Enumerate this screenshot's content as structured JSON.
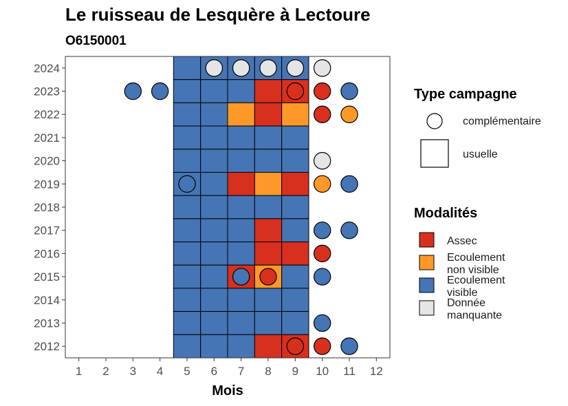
{
  "chart_data": {
    "type": "heatmap",
    "title": "Le ruisseau de Lesquère à Lectoure",
    "subtitle": "O6150001",
    "xlabel": "Mois",
    "ylabel": "",
    "x_ticks": [
      1,
      2,
      3,
      4,
      5,
      6,
      7,
      8,
      9,
      10,
      11,
      12
    ],
    "y_ticks": [
      2012,
      2013,
      2014,
      2015,
      2016,
      2017,
      2018,
      2019,
      2020,
      2021,
      2022,
      2023,
      2024
    ],
    "xlim": [
      0.5,
      12.5
    ],
    "ylim": [
      2011.5,
      2024.5
    ],
    "colors": {
      "Assec": "#d7301f",
      "Ecoulement non visible": "#fe9929",
      "Ecoulement visible": "#4575b4",
      "Donnée manquante": "#e5e5e5"
    },
    "grid": false,
    "legend_placement": "right",
    "legend_type": {
      "title": "Type campagne",
      "items": [
        {
          "shape": "circle",
          "label": "complémentaire"
        },
        {
          "shape": "square",
          "label": "usuelle"
        }
      ]
    },
    "legend_modalites": {
      "title": "Modalités",
      "items": [
        {
          "key": "Assec",
          "label_lines": [
            "Assec"
          ]
        },
        {
          "key": "Ecoulement non visible",
          "label_lines": [
            "Ecoulement",
            "non visible"
          ]
        },
        {
          "key": "Ecoulement visible",
          "label_lines": [
            "Ecoulement",
            "visible"
          ]
        },
        {
          "key": "Donnée manquante",
          "label_lines": [
            "Donnée",
            "manquante"
          ]
        }
      ]
    },
    "usuelle": [
      {
        "year": 2024,
        "values": [
          "Ecoulement visible",
          "Ecoulement visible",
          "Ecoulement visible",
          "Ecoulement visible",
          "Ecoulement visible"
        ]
      },
      {
        "year": 2023,
        "values": [
          "Ecoulement visible",
          "Ecoulement visible",
          "Ecoulement visible",
          "Assec",
          "Assec"
        ]
      },
      {
        "year": 2022,
        "values": [
          "Ecoulement visible",
          "Ecoulement visible",
          "Ecoulement non visible",
          "Assec",
          "Ecoulement non visible"
        ]
      },
      {
        "year": 2021,
        "values": [
          "Ecoulement visible",
          "Ecoulement visible",
          "Ecoulement visible",
          "Ecoulement visible",
          "Ecoulement visible"
        ]
      },
      {
        "year": 2020,
        "values": [
          "Ecoulement visible",
          "Ecoulement visible",
          "Ecoulement visible",
          "Ecoulement visible",
          "Ecoulement visible"
        ]
      },
      {
        "year": 2019,
        "values": [
          "Ecoulement visible",
          "Ecoulement visible",
          "Assec",
          "Ecoulement non visible",
          "Assec"
        ]
      },
      {
        "year": 2018,
        "values": [
          "Ecoulement visible",
          "Ecoulement visible",
          "Ecoulement visible",
          "Ecoulement visible",
          "Ecoulement visible"
        ]
      },
      {
        "year": 2017,
        "values": [
          "Ecoulement visible",
          "Ecoulement visible",
          "Ecoulement visible",
          "Assec",
          "Ecoulement visible"
        ]
      },
      {
        "year": 2016,
        "values": [
          "Ecoulement visible",
          "Ecoulement visible",
          "Ecoulement visible",
          "Assec",
          "Assec"
        ]
      },
      {
        "year": 2015,
        "values": [
          "Ecoulement visible",
          "Ecoulement visible",
          "Assec",
          "Ecoulement non visible",
          "Ecoulement visible"
        ]
      },
      {
        "year": 2014,
        "values": [
          "Ecoulement visible",
          "Ecoulement visible",
          "Ecoulement visible",
          "Ecoulement visible",
          "Ecoulement visible"
        ]
      },
      {
        "year": 2013,
        "values": [
          "Ecoulement visible",
          "Ecoulement visible",
          "Ecoulement visible",
          "Ecoulement visible",
          "Ecoulement visible"
        ]
      },
      {
        "year": 2012,
        "values": [
          "Ecoulement visible",
          "Ecoulement visible",
          "Ecoulement visible",
          "Assec",
          "Assec"
        ]
      }
    ],
    "usuelle_months": [
      5,
      6,
      7,
      8,
      9
    ],
    "complementaire": [
      {
        "year": 2024,
        "month": 6,
        "value": "Donnée manquante"
      },
      {
        "year": 2024,
        "month": 7,
        "value": "Donnée manquante"
      },
      {
        "year": 2024,
        "month": 8,
        "value": "Donnée manquante"
      },
      {
        "year": 2024,
        "month": 9,
        "value": "Donnée manquante"
      },
      {
        "year": 2024,
        "month": 10,
        "value": "Donnée manquante"
      },
      {
        "year": 2023,
        "month": 3,
        "value": "Ecoulement visible"
      },
      {
        "year": 2023,
        "month": 4,
        "value": "Ecoulement visible"
      },
      {
        "year": 2023,
        "month": 9,
        "value": "Assec"
      },
      {
        "year": 2023,
        "month": 10,
        "value": "Assec"
      },
      {
        "year": 2023,
        "month": 11,
        "value": "Ecoulement visible"
      },
      {
        "year": 2022,
        "month": 10,
        "value": "Assec"
      },
      {
        "year": 2022,
        "month": 11,
        "value": "Ecoulement non visible"
      },
      {
        "year": 2020,
        "month": 10,
        "value": "Donnée manquante"
      },
      {
        "year": 2019,
        "month": 5,
        "value": "Ecoulement visible"
      },
      {
        "year": 2019,
        "month": 10,
        "value": "Ecoulement non visible"
      },
      {
        "year": 2019,
        "month": 11,
        "value": "Ecoulement visible"
      },
      {
        "year": 2017,
        "month": 10,
        "value": "Ecoulement visible"
      },
      {
        "year": 2017,
        "month": 11,
        "value": "Ecoulement visible"
      },
      {
        "year": 2016,
        "month": 10,
        "value": "Assec"
      },
      {
        "year": 2015,
        "month": 7,
        "value": "Ecoulement visible"
      },
      {
        "year": 2015,
        "month": 8,
        "value": "Assec"
      },
      {
        "year": 2015,
        "month": 10,
        "value": "Ecoulement visible"
      },
      {
        "year": 2013,
        "month": 10,
        "value": "Ecoulement visible"
      },
      {
        "year": 2012,
        "month": 9,
        "value": "Assec"
      },
      {
        "year": 2012,
        "month": 10,
        "value": "Assec"
      },
      {
        "year": 2012,
        "month": 11,
        "value": "Ecoulement visible"
      }
    ]
  }
}
